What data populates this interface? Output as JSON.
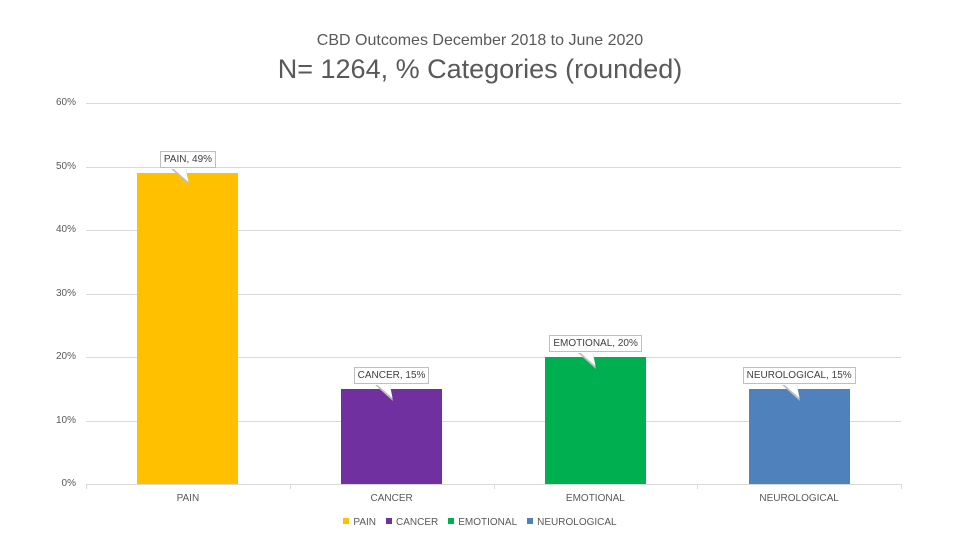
{
  "chart_data": {
    "type": "bar",
    "subtitle": "CBD Outcomes December 2018 to June 2020",
    "title": "N= 1264, % Categories (rounded)",
    "categories": [
      "PAIN",
      "CANCER",
      "EMOTIONAL",
      "NEUROLOGICAL"
    ],
    "values": [
      49,
      15,
      20,
      15
    ],
    "data_labels": [
      "PAIN, 49%",
      "CANCER, 15%",
      "EMOTIONAL, 20%",
      "NEUROLOGICAL, 15%"
    ],
    "colors": [
      "#FFC000",
      "#7030A0",
      "#00B050",
      "#4F81BD"
    ],
    "yticks": [
      "0%",
      "10%",
      "20%",
      "30%",
      "40%",
      "50%",
      "60%"
    ],
    "ylim": [
      0,
      60
    ],
    "xlabel": "",
    "ylabel": "",
    "grid": true,
    "legend": [
      "PAIN",
      "CANCER",
      "EMOTIONAL",
      "NEUROLOGICAL"
    ],
    "legend_position": "bottom"
  }
}
